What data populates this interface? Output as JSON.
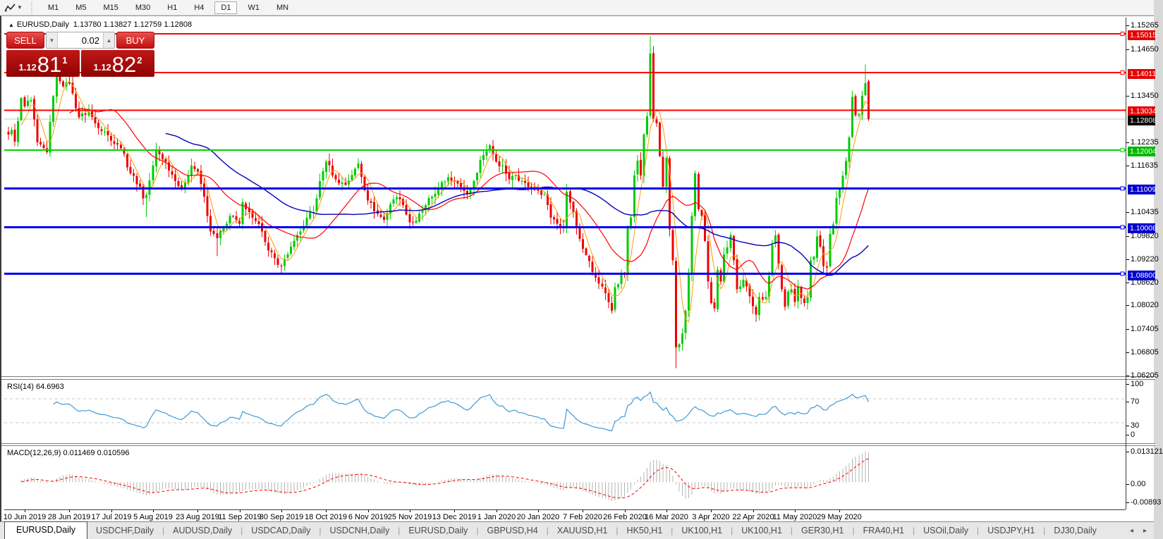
{
  "toolbar": {
    "timeframes": [
      {
        "label": "M1",
        "active": false
      },
      {
        "label": "M5",
        "active": false
      },
      {
        "label": "M15",
        "active": false
      },
      {
        "label": "M30",
        "active": false
      },
      {
        "label": "H1",
        "active": false
      },
      {
        "label": "H4",
        "active": false
      },
      {
        "label": "D1",
        "active": true
      },
      {
        "label": "W1",
        "active": false
      },
      {
        "label": "MN",
        "active": false
      }
    ]
  },
  "chart": {
    "symbol_title": "EURUSD,Daily",
    "ohlc_text": "1.13780 1.13827 1.12759 1.12808"
  },
  "trade_panel": {
    "sell_label": "SELL",
    "buy_label": "BUY",
    "lot_value": "0.02",
    "sell_price": {
      "base": "1.12",
      "big": "81",
      "sup": "1"
    },
    "buy_price": {
      "base": "1.12",
      "big": "82",
      "sup": "2"
    }
  },
  "price_axis": {
    "ticks": [
      "1.15265",
      "1.14650",
      "1.13450",
      "1.12235",
      "1.11635",
      "1.10435",
      "1.09820",
      "1.09220",
      "1.08620",
      "1.08020",
      "1.07405",
      "1.06805",
      "1.06205"
    ],
    "badges": [
      {
        "label": "1.15015",
        "color": "#e60000"
      },
      {
        "label": "1.14011",
        "color": "#e60000"
      },
      {
        "label": "1.13034",
        "color": "#e60000"
      },
      {
        "label": "1.12808",
        "color": "#000000"
      },
      {
        "label": "1.12004",
        "color": "#00b800"
      },
      {
        "label": "1.11009",
        "color": "#0000cc"
      },
      {
        "label": "1.10008",
        "color": "#0000cc"
      },
      {
        "label": "1.08800",
        "color": "#0000cc"
      }
    ]
  },
  "rsi_panel": {
    "label": "RSI(14) 64.6963",
    "ticks": [
      {
        "text": "100",
        "value": 100
      },
      {
        "text": "70",
        "value": 70
      },
      {
        "text": "30",
        "value": 30
      },
      {
        "text": "0",
        "value": 0
      }
    ]
  },
  "macd_panel": {
    "label": "MACD(12,26,9) 0.011469 0.010596",
    "ticks": [
      {
        "text": "0.013121",
        "value": 0.013121
      },
      {
        "text": "0.00",
        "value": 0
      },
      {
        "text": "-0.00893",
        "value": -0.00893
      }
    ]
  },
  "date_axis": {
    "labels": [
      "10 Jun 2019",
      "28 Jun 2019",
      "17 Jul 2019",
      "5 Aug 2019",
      "23 Aug 2019",
      "11 Sep 2019",
      "30 Sep 2019",
      "18 Oct 2019",
      "6 Nov 2019",
      "25 Nov 2019",
      "13 Dec 2019",
      "1 Jan 2020",
      "20 Jan 2020",
      "7 Feb 2020",
      "26 Feb 2020",
      "16 Mar 2020",
      "3 Apr 2020",
      "22 Apr 2020",
      "11 May 2020",
      "29 May 2020"
    ]
  },
  "tabs": {
    "items": [
      {
        "label": "EURUSD,Daily",
        "active": true
      },
      {
        "label": "USDCHF,Daily",
        "active": false
      },
      {
        "label": "AUDUSD,Daily",
        "active": false
      },
      {
        "label": "USDCAD,Daily",
        "active": false
      },
      {
        "label": "USDCNH,Daily",
        "active": false
      },
      {
        "label": "EURUSD,Daily",
        "active": false
      },
      {
        "label": "GBPUSD,H4",
        "active": false
      },
      {
        "label": "XAUUSD,H1",
        "active": false
      },
      {
        "label": "HK50,H1",
        "active": false
      },
      {
        "label": "UK100,H1",
        "active": false
      },
      {
        "label": "UK100,H1",
        "active": false
      },
      {
        "label": "GER30,H1",
        "active": false
      },
      {
        "label": "FRA40,H1",
        "active": false
      },
      {
        "label": "USOil,Daily",
        "active": false
      },
      {
        "label": "USDJPY,H1",
        "active": false
      },
      {
        "label": "DJ30,Daily",
        "active": false
      }
    ],
    "scroll_left": "◂",
    "scroll_right": "▸"
  },
  "chart_data": {
    "type": "candlestick",
    "symbol": "EURUSD",
    "period": "Daily",
    "candle_count": 269,
    "ylim": {
      "top": 1.1543,
      "bottom": 1.0615
    },
    "bull_color": "#00cc00",
    "bear_color": "#ee0000",
    "last_candle": {
      "open": 1.1378,
      "high": 1.13827,
      "low": 1.12759,
      "close": 1.12808
    },
    "anchors": [
      [
        0,
        1.124
      ],
      [
        1,
        1.1252
      ],
      [
        2,
        1.1222
      ],
      [
        3,
        1.1275
      ],
      [
        4,
        1.1335
      ],
      [
        5,
        1.1313
      ],
      [
        7,
        1.133
      ],
      [
        9,
        1.122
      ],
      [
        12,
        1.1195
      ],
      [
        14,
        1.134
      ],
      [
        15,
        1.14
      ],
      [
        17,
        1.1365
      ],
      [
        19,
        1.1373
      ],
      [
        22,
        1.1285
      ],
      [
        25,
        1.13
      ],
      [
        27,
        1.127
      ],
      [
        30,
        1.1248
      ],
      [
        32,
        1.1225
      ],
      [
        35,
        1.1205
      ],
      [
        38,
        1.114
      ],
      [
        41,
        1.1105
      ],
      [
        42,
        1.1075
      ],
      [
        43,
        1.1084
      ],
      [
        45,
        1.116
      ],
      [
        46,
        1.12
      ],
      [
        49,
        1.117
      ],
      [
        52,
        1.112
      ],
      [
        54,
        1.11
      ],
      [
        57,
        1.116
      ],
      [
        59,
        1.1145
      ],
      [
        61,
        1.108
      ],
      [
        63,
        1.099
      ],
      [
        65,
        1.0972
      ],
      [
        67,
        1.1
      ],
      [
        69,
        1.103
      ],
      [
        72,
        1.101
      ],
      [
        73,
        1.1065
      ],
      [
        75,
        1.104
      ],
      [
        77,
        1.1017
      ],
      [
        79,
        1.099
      ],
      [
        81,
        1.094
      ],
      [
        83,
        1.092
      ],
      [
        85,
        1.09
      ],
      [
        87,
        1.093
      ],
      [
        89,
        1.0965
      ],
      [
        91,
        1.099
      ],
      [
        93,
        1.1025
      ],
      [
        95,
        1.104
      ],
      [
        97,
        1.112
      ],
      [
        99,
        1.117
      ],
      [
        102,
        1.1125
      ],
      [
        105,
        1.111
      ],
      [
        108,
        1.1152
      ],
      [
        109,
        1.1166
      ],
      [
        112,
        1.107
      ],
      [
        115,
        1.1035
      ],
      [
        117,
        1.102
      ],
      [
        119,
        1.106
      ],
      [
        121,
        1.1078
      ],
      [
        123,
        1.1058
      ],
      [
        125,
        1.1013
      ],
      [
        127,
        1.1018
      ],
      [
        130,
        1.1058
      ],
      [
        132,
        1.108
      ],
      [
        134,
        1.1103
      ],
      [
        137,
        1.113
      ],
      [
        139,
        1.112
      ],
      [
        141,
        1.1105
      ],
      [
        143,
        1.1088
      ],
      [
        145,
        1.112
      ],
      [
        147,
        1.1175
      ],
      [
        150,
        1.1213
      ],
      [
        152,
        1.117
      ],
      [
        154,
        1.116
      ],
      [
        156,
        1.1125
      ],
      [
        158,
        1.1135
      ],
      [
        160,
        1.112
      ],
      [
        162,
        1.1105
      ],
      [
        165,
        1.1095
      ],
      [
        167,
        1.1085
      ],
      [
        169,
        1.1025
      ],
      [
        171,
        1.101
      ],
      [
        173,
        1.1
      ],
      [
        174,
        1.1093
      ],
      [
        176,
        1.104
      ],
      [
        177,
        1.1
      ],
      [
        179,
        1.0945
      ],
      [
        181,
        1.0913
      ],
      [
        183,
        1.087
      ],
      [
        186,
        1.083
      ],
      [
        188,
        1.0785
      ],
      [
        189,
        1.0846
      ],
      [
        190,
        1.0853
      ],
      [
        191,
        1.088
      ],
      [
        192,
        1.0881
      ],
      [
        193,
        1.1
      ],
      [
        194,
        1.1026
      ],
      [
        195,
        1.1135
      ],
      [
        196,
        1.1173
      ],
      [
        197,
        1.1135
      ],
      [
        198,
        1.124
      ],
      [
        199,
        1.1288
      ],
      [
        200,
        1.145
      ],
      [
        201,
        1.128
      ],
      [
        202,
        1.127
      ],
      [
        203,
        1.1185
      ],
      [
        204,
        1.1105
      ],
      [
        205,
        1.118
      ],
      [
        206,
        1.0995
      ],
      [
        207,
        1.0915
      ],
      [
        208,
        1.069
      ],
      [
        209,
        1.0698
      ],
      [
        210,
        1.0725
      ],
      [
        211,
        1.0785
      ],
      [
        212,
        1.088
      ],
      [
        213,
        1.103
      ],
      [
        214,
        1.114
      ],
      [
        215,
        1.1047
      ],
      [
        216,
        1.103
      ],
      [
        217,
        1.0965
      ],
      [
        218,
        1.086
      ],
      [
        219,
        1.0805
      ],
      [
        220,
        1.0791
      ],
      [
        221,
        1.089
      ],
      [
        222,
        1.086
      ],
      [
        223,
        1.093
      ],
      [
        225,
        1.098
      ],
      [
        227,
        1.084
      ],
      [
        229,
        1.0865
      ],
      [
        231,
        1.0822
      ],
      [
        233,
        1.0775
      ],
      [
        234,
        1.082
      ],
      [
        236,
        1.082
      ],
      [
        237,
        1.0875
      ],
      [
        238,
        1.0955
      ],
      [
        239,
        1.098
      ],
      [
        240,
        1.0905
      ],
      [
        241,
        1.084
      ],
      [
        242,
        1.0795
      ],
      [
        243,
        1.0834
      ],
      [
        244,
        1.084
      ],
      [
        245,
        1.0807
      ],
      [
        246,
        1.0848
      ],
      [
        247,
        1.0817
      ],
      [
        248,
        1.0805
      ],
      [
        249,
        1.082
      ],
      [
        250,
        1.0915
      ],
      [
        251,
        1.0924
      ],
      [
        252,
        1.0977
      ],
      [
        253,
        1.095
      ],
      [
        254,
        1.09
      ],
      [
        255,
        1.0897
      ],
      [
        256,
        1.0983
      ],
      [
        257,
        1.1008
      ],
      [
        258,
        1.1076
      ],
      [
        259,
        1.1101
      ],
      [
        260,
        1.1134
      ],
      [
        261,
        1.1172
      ],
      [
        262,
        1.1233
      ],
      [
        263,
        1.1338
      ],
      [
        264,
        1.129
      ],
      [
        265,
        1.1293
      ],
      [
        266,
        1.1341
      ],
      [
        267,
        1.1373
      ],
      [
        268,
        1.12808
      ]
    ],
    "spikes": {
      "15": {
        "h": 1.1412
      },
      "43": {
        "l": 1.1027
      },
      "65": {
        "l": 1.0926
      },
      "85": {
        "l": 1.0879
      },
      "188": {
        "l": 1.0777
      },
      "200": {
        "h": 1.1495
      },
      "208": {
        "l": 1.0636
      },
      "267": {
        "h": 1.1422
      }
    },
    "date_tick_indices": [
      5,
      19,
      32,
      45,
      59,
      72,
      85,
      99,
      112,
      125,
      139,
      152,
      165,
      179,
      192,
      205,
      219,
      232,
      245,
      259
    ],
    "moving_averages": [
      {
        "period": 5,
        "color": "#ff9c00",
        "width": 1
      },
      {
        "period": 20,
        "color": "#ff0000",
        "width": 1.2
      },
      {
        "period": 50,
        "color": "#0000bb",
        "width": 1.4
      }
    ],
    "hlines": [
      {
        "value": 1.15015,
        "color": "#ff0000",
        "width": 2,
        "marker": true
      },
      {
        "value": 1.14011,
        "color": "#ff0000",
        "width": 2,
        "marker": true
      },
      {
        "value": 1.13034,
        "color": "#ff0000",
        "width": 2,
        "marker": false
      },
      {
        "value": 1.12004,
        "color": "#00d400",
        "width": 2,
        "marker": true
      },
      {
        "value": 1.11009,
        "color": "#0000ee",
        "width": 3,
        "marker": true
      },
      {
        "value": 1.10008,
        "color": "#0000ee",
        "width": 3,
        "marker": true
      },
      {
        "value": 1.088,
        "color": "#0000ee",
        "width": 3,
        "marker": true
      }
    ],
    "current_price_line": {
      "value": 1.12808,
      "color": "#c4c4c4"
    },
    "rsi": {
      "period": 14,
      "last": 64.6963,
      "levels": [
        70,
        30
      ],
      "range": [
        0,
        100
      ],
      "color": "#3d9bd6"
    },
    "macd": {
      "fast": 12,
      "slow": 26,
      "signal": 9,
      "last_main": 0.011469,
      "last_signal": 0.010596,
      "range": [
        -0.00893,
        0.013121
      ],
      "hist_color": "#b4b4b4",
      "signal_color": "#ff0000"
    }
  }
}
